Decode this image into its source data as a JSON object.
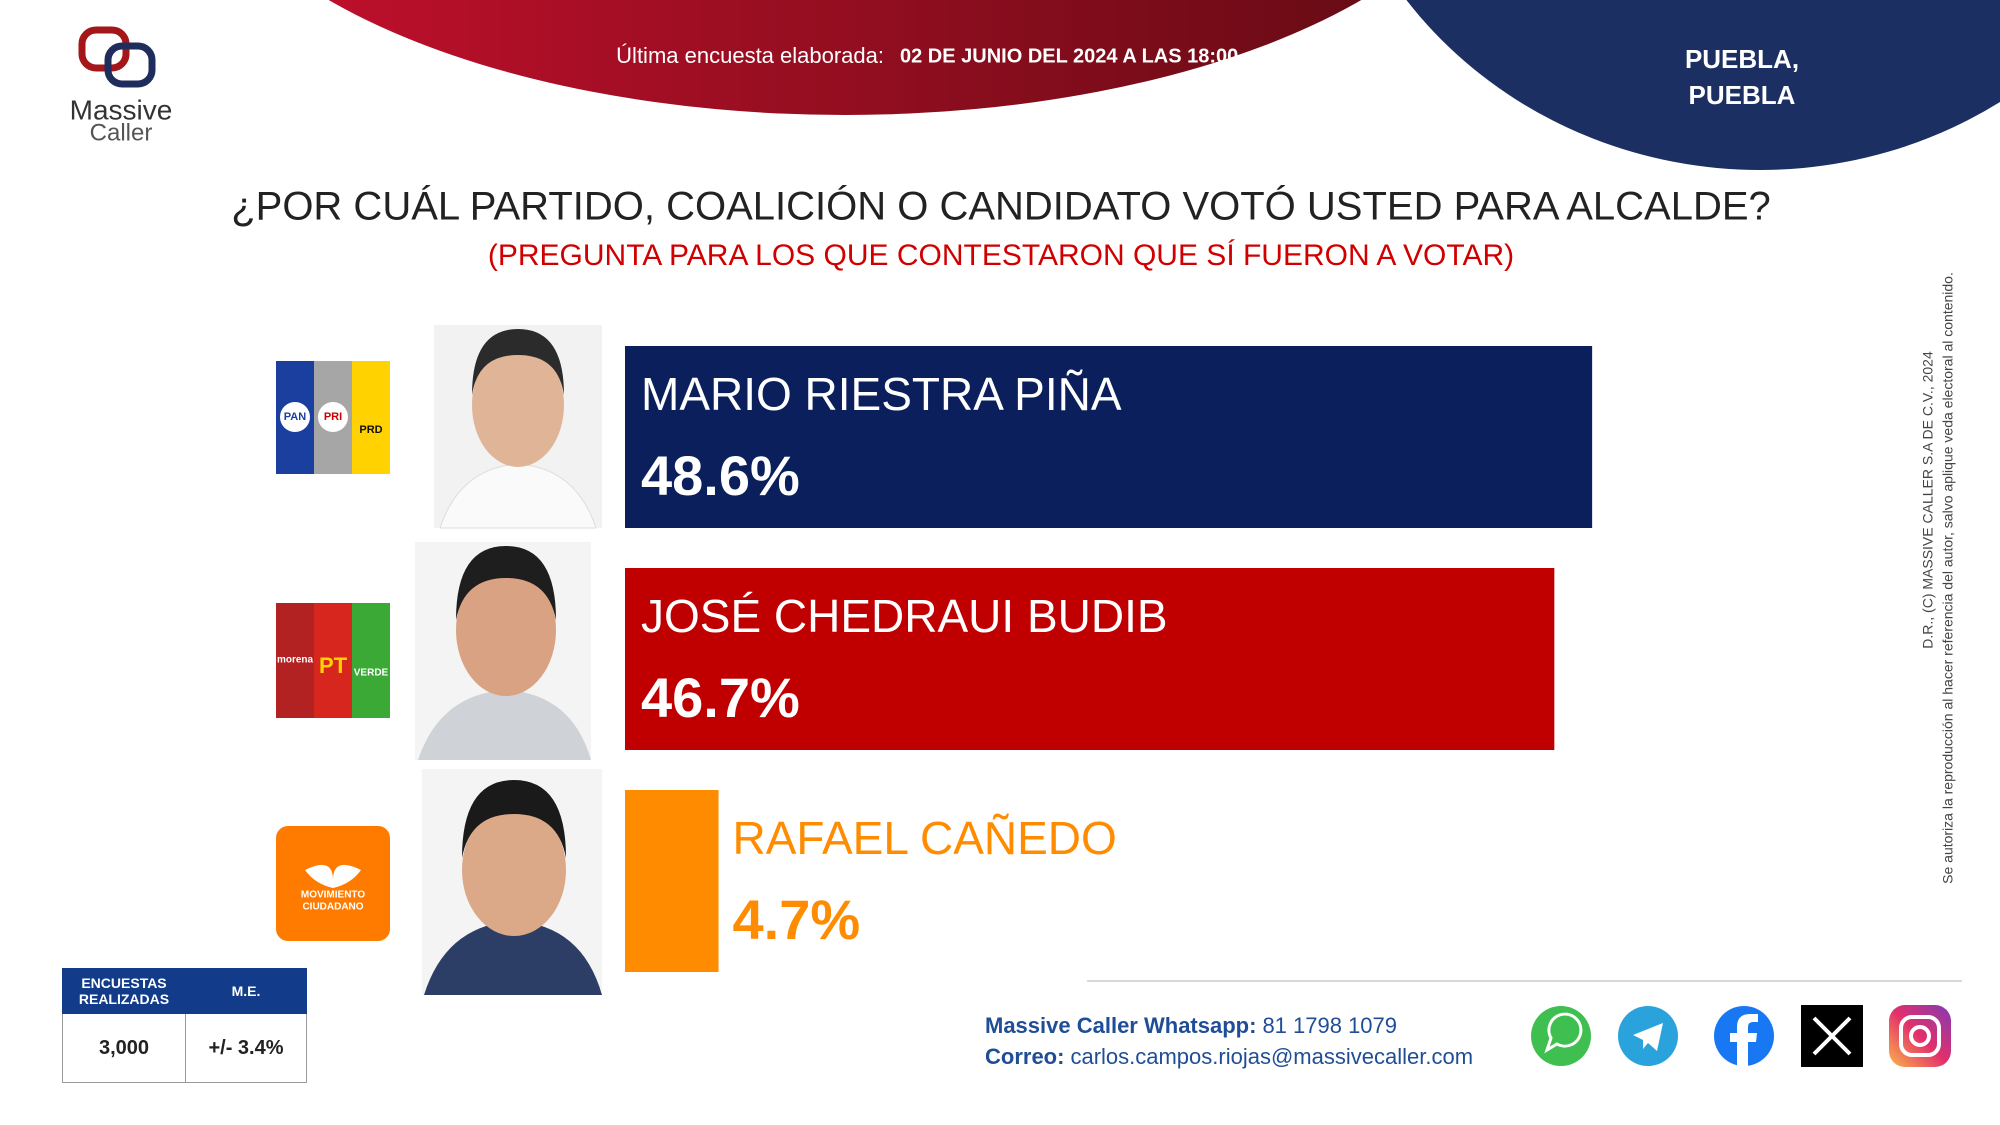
{
  "header": {
    "survey_label": "Última encuesta elaborada:",
    "survey_date": "02 DE JUNIO DEL 2024 A LAS 18:00",
    "location": [
      "PUEBLA,",
      "PUEBLA"
    ]
  },
  "logo": {
    "line1": "Massive",
    "line2": "Caller"
  },
  "chart_data": {
    "type": "bar",
    "orientation": "horizontal",
    "title": "¿POR CUÁL PARTIDO, COALICIÓN O CANDIDATO VOTÓ USTED PARA ALCALDE?",
    "subtitle": "(PREGUNTA PARA LOS QUE CONTESTARON QUE SÍ FUERON A VOTAR)",
    "categories": [
      "MARIO RIESTRA PIÑA",
      "JOSÉ CHEDRAUI BUDIB",
      "RAFAEL CAÑEDO"
    ],
    "values": [
      48.6,
      46.7,
      4.7
    ],
    "value_labels": [
      "48.6%",
      "46.7%",
      "4.7%"
    ],
    "colors": [
      "#0a1f5c",
      "#c00000",
      "#ff8c00"
    ]
  },
  "party_logos": [
    [
      "PAN",
      "PRI",
      "PRD"
    ],
    [
      "morena",
      "PT",
      "VERDE"
    ],
    [
      "MOVIMIENTO",
      "CIUDADANO"
    ]
  ],
  "stats_table": {
    "headers": [
      "ENCUESTAS REALIZADAS",
      "M.E."
    ],
    "rows": [
      [
        "3,000",
        "+/- 3.4%"
      ]
    ]
  },
  "contact": {
    "whatsapp_label": "Massive Caller Whatsapp:",
    "whatsapp": "81 1798 1079",
    "email_label": "Correo:",
    "email": "carlos.campos.riojas@massivecaller.com"
  },
  "disclaimer": [
    "D.R., (C) MASSIVE CALLER S.A DE C.V., 2024",
    "Se autoriza la reproducción al hacer referencia del autor, salvo aplique veda electoral al contenido."
  ]
}
